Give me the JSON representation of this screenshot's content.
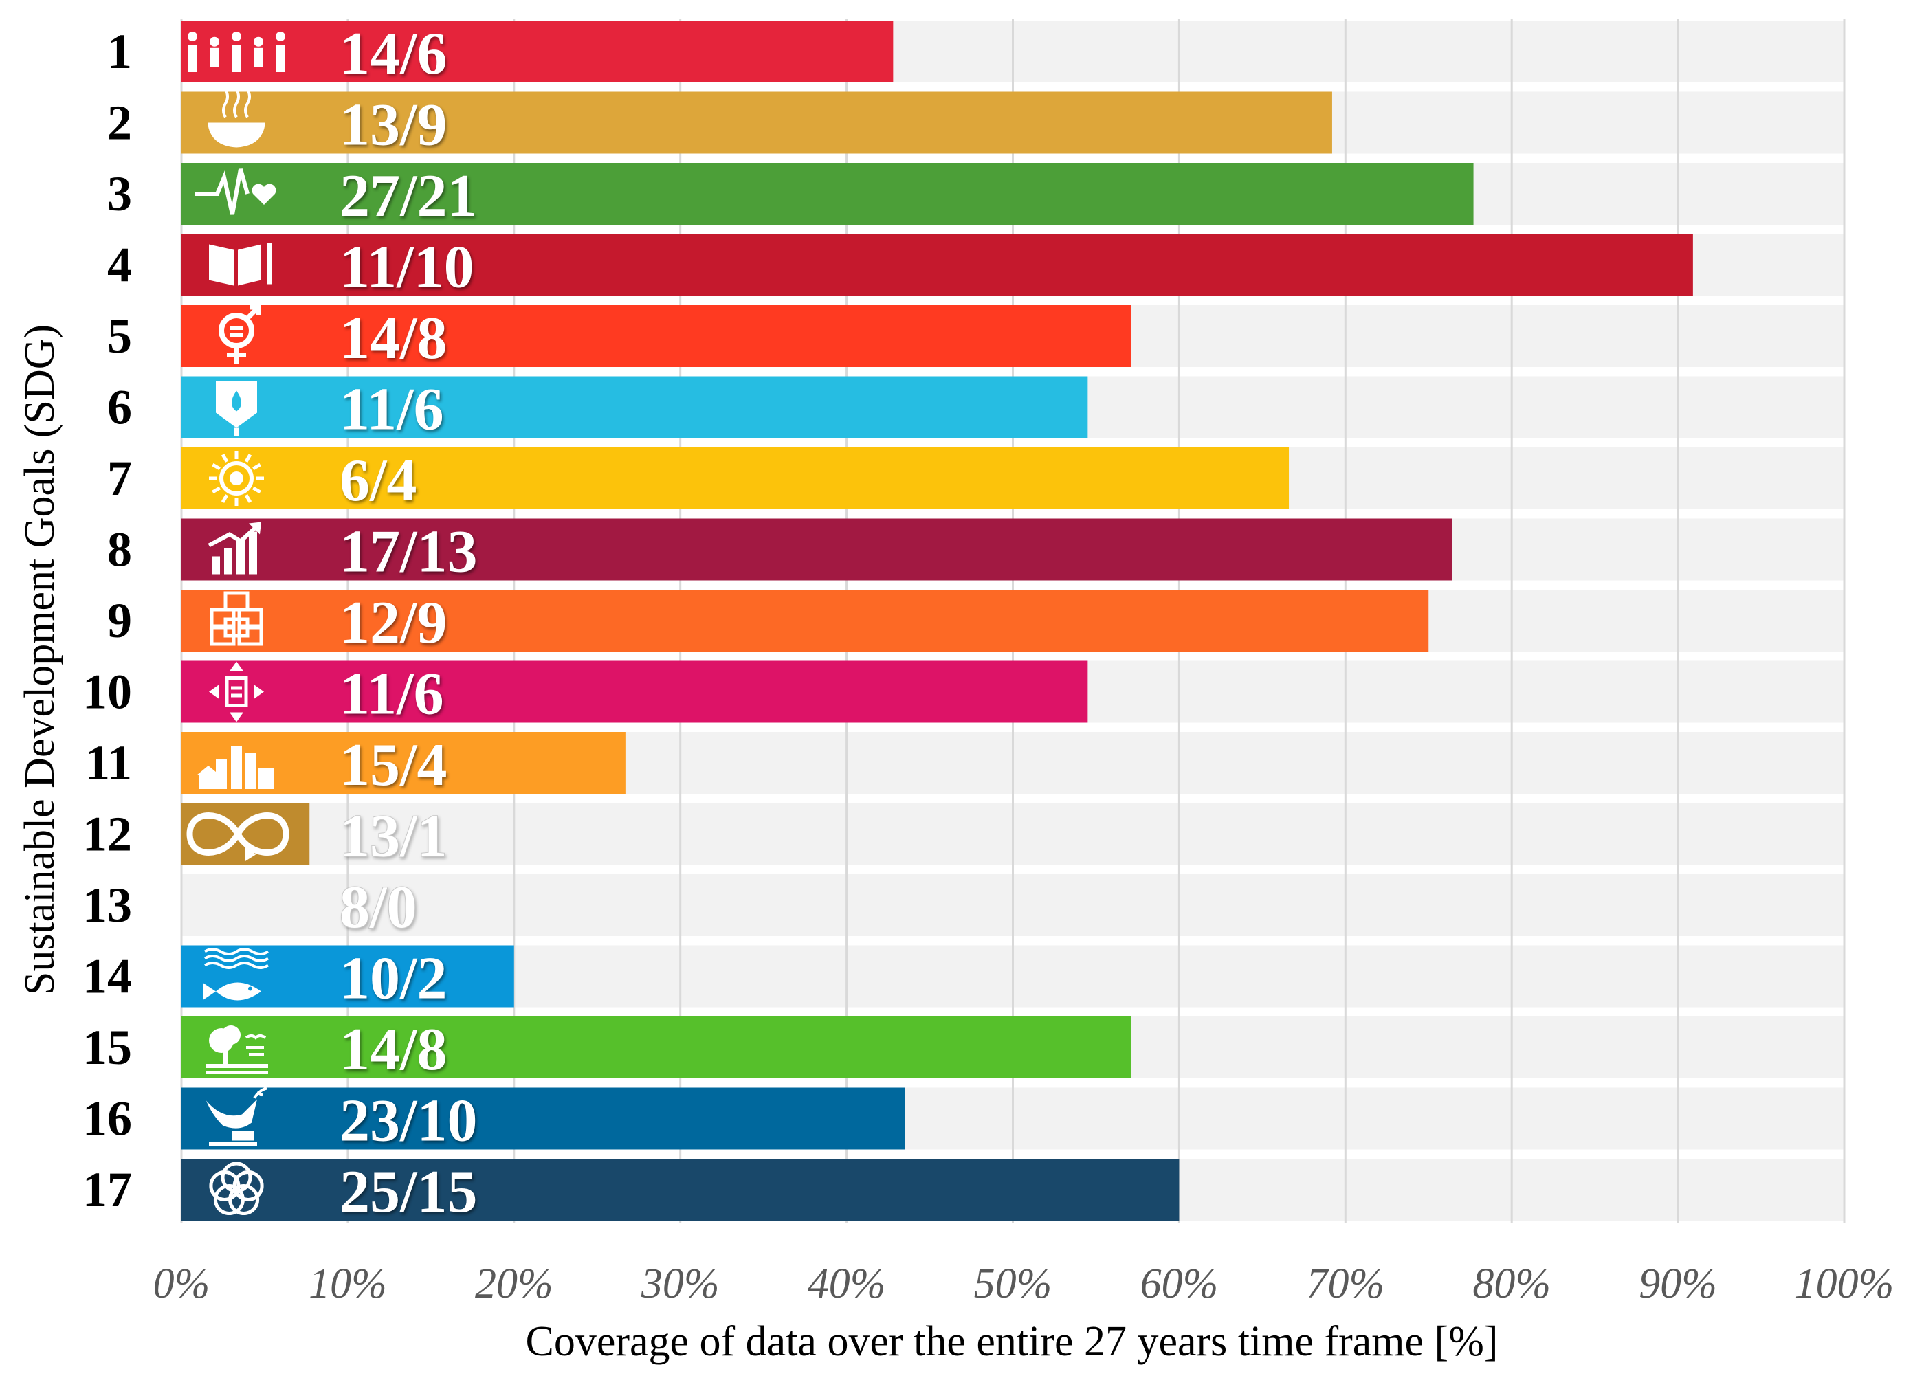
{
  "chart_data": {
    "type": "bar",
    "orientation": "horizontal",
    "xlabel": "Coverage of data over the entire 27 years time frame [%]",
    "ylabel": "Sustainable Development Goals (SDG)",
    "xlim": [
      0,
      100
    ],
    "x_ticks": [
      "0%",
      "10%",
      "20%",
      "30%",
      "40%",
      "50%",
      "60%",
      "70%",
      "80%",
      "90%",
      "100%"
    ],
    "grid": true,
    "categories": [
      "1",
      "2",
      "3",
      "4",
      "5",
      "6",
      "7",
      "8",
      "9",
      "10",
      "11",
      "12",
      "13",
      "14",
      "15",
      "16",
      "17"
    ],
    "values": [
      42.8,
      69.2,
      77.7,
      90.9,
      57.1,
      54.5,
      66.6,
      76.4,
      75.0,
      54.5,
      26.7,
      7.7,
      0,
      20.0,
      57.1,
      43.5,
      60.0
    ],
    "bar_labels": [
      "14/6",
      "13/9",
      "27/21",
      "11/10",
      "14/8",
      "11/6",
      "6/4",
      "17/13",
      "12/9",
      "11/6",
      "15/4",
      "13/1",
      "8/0",
      "10/2",
      "14/8",
      "23/10",
      "25/15"
    ],
    "icons": [
      "no-poverty-icon",
      "zero-hunger-icon",
      "good-health-icon",
      "quality-education-icon",
      "gender-equality-icon",
      "clean-water-icon",
      "clean-energy-icon",
      "economic-growth-icon",
      "industry-innovation-icon",
      "reduced-inequalities-icon",
      "sustainable-cities-icon",
      "responsible-consumption-icon",
      "climate-action-icon",
      "life-below-water-icon",
      "life-on-land-icon",
      "peace-justice-icon",
      "partnerships-icon"
    ],
    "colors": [
      "#E5243B",
      "#DDA63A",
      "#4C9F38",
      "#C5192D",
      "#FF3A21",
      "#26BDE2",
      "#FCC30B",
      "#A21942",
      "#FD6925",
      "#DD1367",
      "#FD9D24",
      "#BF8B2E",
      "#3F7E44",
      "#0A97D9",
      "#56C02B",
      "#00689D",
      "#19486A"
    ]
  }
}
